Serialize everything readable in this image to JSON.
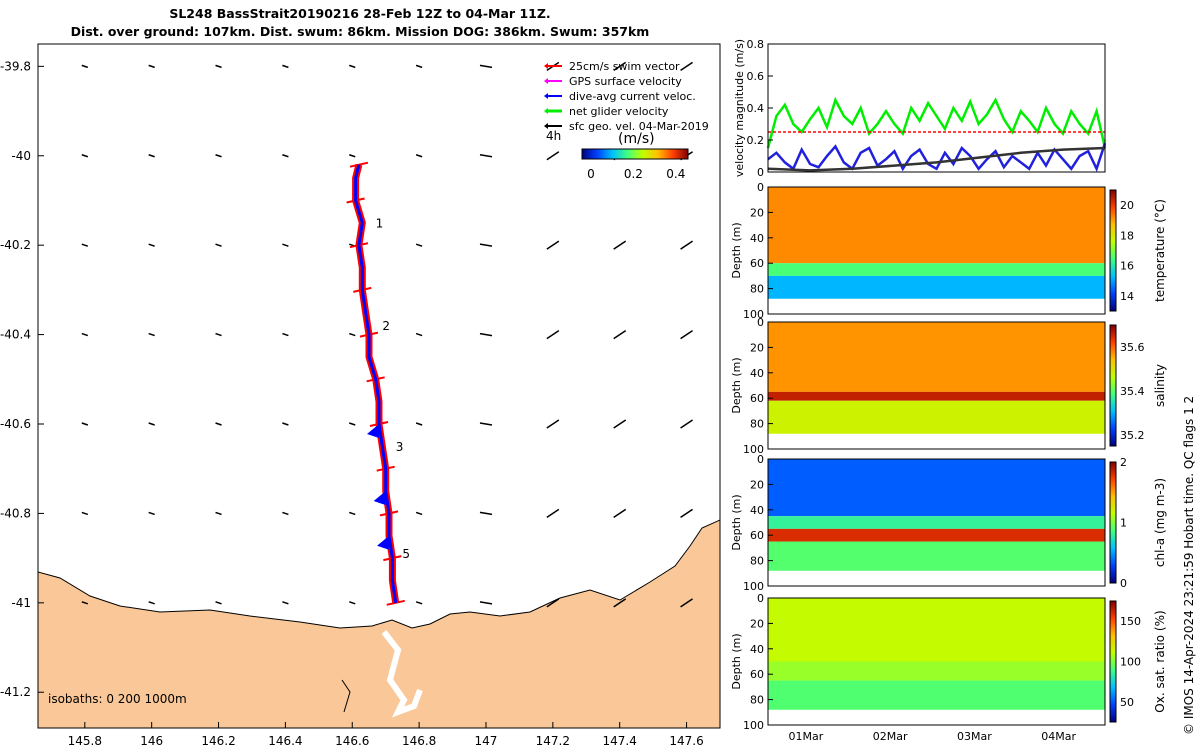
{
  "title_line1": "SL248 BassStrait20190216 28-Feb 12Z to 04-Mar 11Z.",
  "title_line2": "Dist. over ground: 107km. Dist. swum: 86km. Mission DOG: 386km. Swum: 357km",
  "credit": "© IMOS 14-Apr-2024 23:21:59 Hobart time. QC flags 1  2",
  "colors": {
    "land": "#fac898",
    "swim_vector": "#ff0000",
    "gps_velocity": "#ff00ff",
    "current_velocity": "#0000ff",
    "net_velocity": "#00ee00",
    "geo_velocity": "#000000"
  },
  "chart_data": [
    {
      "type": "map",
      "xlim": [
        145.66,
        147.7
      ],
      "ylim": [
        -41.28,
        -39.75
      ],
      "x_ticks": [
        145.8,
        146,
        146.2,
        146.4,
        146.6,
        146.8,
        147,
        147.2,
        147.4,
        147.6
      ],
      "x_tick_labels": [
        "145.8",
        "146",
        "146.2",
        "146.4",
        "146.6",
        "146.8",
        "147",
        "147.2",
        "147.4",
        "147.6"
      ],
      "y_ticks": [
        -39.8,
        -40,
        -40.2,
        -40.4,
        -40.6,
        -40.8,
        -41,
        -41.2
      ],
      "y_tick_labels": [
        "-39.8",
        "-40",
        "-40.2",
        "-40.4",
        "-40.6",
        "-40.8",
        "-41",
        "-41.2"
      ],
      "legend": {
        "placement": "top-right",
        "entries": [
          "25cm/s swim vector",
          "GPS surface velocity",
          "dive-avg current veloc.",
          "net glider velocity",
          "sfc geo. vel. 04-Mar-2019"
        ]
      },
      "colorbar": {
        "label": "(m/s)",
        "time_label": "4h",
        "ticks": [
          0,
          0.2,
          0.4
        ],
        "tick_labels": [
          "0",
          "0.2",
          "0.4"
        ],
        "range": [
          0,
          0.5
        ]
      },
      "isobaths_label": "isobaths: 0   200  1000m",
      "track": [
        [
          146.62,
          -40.02
        ],
        [
          146.61,
          -40.05
        ],
        [
          146.61,
          -40.1
        ],
        [
          146.63,
          -40.15
        ],
        [
          146.62,
          -40.2
        ],
        [
          146.63,
          -40.25
        ],
        [
          146.63,
          -40.3
        ],
        [
          146.64,
          -40.35
        ],
        [
          146.65,
          -40.4
        ],
        [
          146.65,
          -40.45
        ],
        [
          146.67,
          -40.5
        ],
        [
          146.68,
          -40.55
        ],
        [
          146.68,
          -40.6
        ],
        [
          146.69,
          -40.65
        ],
        [
          146.7,
          -40.7
        ],
        [
          146.7,
          -40.75
        ],
        [
          146.71,
          -40.8
        ],
        [
          146.71,
          -40.85
        ],
        [
          146.72,
          -40.9
        ],
        [
          146.72,
          -40.95
        ],
        [
          146.73,
          -41.0
        ]
      ],
      "waypoints": [
        {
          "label": "1",
          "lon": 146.67,
          "lat": -40.16
        },
        {
          "label": "2",
          "lon": 146.69,
          "lat": -40.39
        },
        {
          "label": "3",
          "lon": 146.73,
          "lat": -40.66
        },
        {
          "label": "5",
          "lon": 146.75,
          "lat": -40.9
        }
      ],
      "geo_velocity_lons": [
        145.8,
        146.0,
        146.2,
        146.4,
        146.6,
        146.8,
        147.0,
        147.2,
        147.4,
        147.6
      ],
      "geo_velocity_lats": [
        -39.8,
        -40.0,
        -40.2,
        -40.4,
        -40.6,
        -40.8,
        -41.0
      ]
    },
    {
      "type": "line",
      "ylabel": "velocity magnitude (m/s)",
      "ylim": [
        0,
        0.8
      ],
      "y_ticks": [
        0,
        0.2,
        0.4,
        0.6,
        0.8
      ],
      "y_tick_labels": [
        "0",
        "0.2",
        "0.4",
        "0.6",
        "0.8"
      ],
      "x_range_days": [
        0,
        4
      ],
      "series": [
        {
          "color": "#00ee00",
          "t": [
            0,
            0.1,
            0.2,
            0.3,
            0.4,
            0.5,
            0.6,
            0.7,
            0.8,
            0.9,
            1.0,
            1.1,
            1.2,
            1.3,
            1.4,
            1.5,
            1.6,
            1.7,
            1.8,
            1.9,
            2.0,
            2.1,
            2.2,
            2.3,
            2.4,
            2.5,
            2.6,
            2.7,
            2.8,
            2.9,
            3.0,
            3.1,
            3.2,
            3.3,
            3.4,
            3.5,
            3.6,
            3.7,
            3.8,
            3.9,
            4.0
          ],
          "values": [
            0.15,
            0.35,
            0.42,
            0.3,
            0.25,
            0.33,
            0.4,
            0.28,
            0.45,
            0.35,
            0.3,
            0.4,
            0.24,
            0.3,
            0.38,
            0.3,
            0.24,
            0.4,
            0.32,
            0.43,
            0.35,
            0.27,
            0.4,
            0.32,
            0.44,
            0.3,
            0.36,
            0.45,
            0.33,
            0.25,
            0.38,
            0.32,
            0.25,
            0.4,
            0.3,
            0.24,
            0.38,
            0.3,
            0.24,
            0.38,
            0.15
          ]
        },
        {
          "color": "#ff0000",
          "t": [
            0,
            4
          ],
          "values": [
            0.25,
            0.25
          ]
        },
        {
          "color": "#2020dd",
          "t": [
            0,
            0.1,
            0.2,
            0.3,
            0.4,
            0.5,
            0.6,
            0.7,
            0.8,
            0.9,
            1.0,
            1.1,
            1.2,
            1.3,
            1.4,
            1.5,
            1.6,
            1.7,
            1.8,
            1.9,
            2.0,
            2.1,
            2.2,
            2.3,
            2.4,
            2.5,
            2.6,
            2.7,
            2.8,
            2.9,
            3.0,
            3.1,
            3.2,
            3.3,
            3.4,
            3.5,
            3.6,
            3.7,
            3.8,
            3.9,
            4.0
          ],
          "values": [
            0.08,
            0.12,
            0.06,
            0.02,
            0.14,
            0.05,
            0.03,
            0.1,
            0.16,
            0.06,
            0.02,
            0.12,
            0.15,
            0.04,
            0.08,
            0.13,
            0.02,
            0.1,
            0.14,
            0.05,
            0.02,
            0.12,
            0.05,
            0.15,
            0.1,
            0.02,
            0.08,
            0.13,
            0.03,
            0.1,
            0.06,
            0.02,
            0.12,
            0.04,
            0.14,
            0.08,
            0.02,
            0.1,
            0.13,
            0.02,
            0.18
          ]
        },
        {
          "color": "#333333",
          "t": [
            0,
            0.5,
            1.0,
            1.5,
            2.0,
            2.5,
            3.0,
            3.5,
            4.0
          ],
          "values": [
            0.02,
            0.01,
            0.02,
            0.04,
            0.06,
            0.09,
            0.12,
            0.14,
            0.15
          ]
        }
      ]
    },
    {
      "type": "heatmap",
      "variable": "temperature",
      "ylabel": "Depth (m)",
      "cbar_label": "temperature (°C)",
      "ylim": [
        100,
        0
      ],
      "y_ticks": [
        0,
        20,
        40,
        60,
        80,
        100
      ],
      "clim": [
        13,
        21
      ],
      "cbar_ticks": [
        14,
        16,
        18,
        20
      ],
      "colormap": [
        "#00007f",
        "#0040ff",
        "#00c0ff",
        "#40ff80",
        "#c0ff00",
        "#ffc000",
        "#ff4000",
        "#800000"
      ],
      "layers": [
        {
          "from_depth": 0,
          "to_depth": 60,
          "value": 19.2
        },
        {
          "from_depth": 60,
          "to_depth": 70,
          "value": 16.5
        },
        {
          "from_depth": 70,
          "to_depth": 90,
          "value": 15.2
        }
      ]
    },
    {
      "type": "heatmap",
      "variable": "salinity",
      "ylabel": "Depth (m)",
      "cbar_label": "salinity",
      "ylim": [
        100,
        0
      ],
      "y_ticks": [
        0,
        20,
        40,
        60,
        80,
        100
      ],
      "clim": [
        35.15,
        35.7
      ],
      "cbar_ticks": [
        35.2,
        35.4,
        35.6
      ],
      "colormap": [
        "#00007f",
        "#0040ff",
        "#00c0ff",
        "#40ff80",
        "#c0ff00",
        "#ffc000",
        "#ff4000",
        "#800000"
      ],
      "layers": [
        {
          "from_depth": 0,
          "to_depth": 55,
          "value": 35.57
        },
        {
          "from_depth": 55,
          "to_depth": 62,
          "value": 35.66
        },
        {
          "from_depth": 62,
          "to_depth": 90,
          "value": 35.48
        }
      ]
    },
    {
      "type": "heatmap",
      "variable": "chl-a",
      "ylabel": "Depth (m)",
      "cbar_label": "chl-a (mg m-3)",
      "ylim": [
        100,
        0
      ],
      "y_ticks": [
        0,
        20,
        40,
        60,
        80,
        100
      ],
      "clim": [
        0,
        2
      ],
      "cbar_ticks": [
        0,
        1,
        2
      ],
      "colormap": [
        "#00007f",
        "#0040ff",
        "#00c0ff",
        "#40ff80",
        "#c0ff00",
        "#ffc000",
        "#ff4000",
        "#800000"
      ],
      "layers": [
        {
          "from_depth": 0,
          "to_depth": 45,
          "value": 0.35
        },
        {
          "from_depth": 45,
          "to_depth": 55,
          "value": 0.8
        },
        {
          "from_depth": 55,
          "to_depth": 65,
          "value": 1.8
        },
        {
          "from_depth": 65,
          "to_depth": 90,
          "value": 0.9
        }
      ]
    },
    {
      "type": "heatmap",
      "variable": "oxygen",
      "ylabel": "Depth (m)",
      "cbar_label": "Ox. sat. ratio (%)",
      "ylim": [
        100,
        0
      ],
      "y_ticks": [
        0,
        20,
        40,
        60,
        80,
        100
      ],
      "clim": [
        25,
        175
      ],
      "cbar_ticks": [
        50,
        100,
        150
      ],
      "colormap": [
        "#00007f",
        "#0040ff",
        "#00c0ff",
        "#40ff80",
        "#c0ff00",
        "#ffc000",
        "#ff4000",
        "#800000"
      ],
      "layers": [
        {
          "from_depth": 0,
          "to_depth": 50,
          "value": 112
        },
        {
          "from_depth": 50,
          "to_depth": 65,
          "value": 104
        },
        {
          "from_depth": 65,
          "to_depth": 90,
          "value": 92
        }
      ]
    }
  ],
  "time_axis": {
    "ticks": [
      0.45,
      1.45,
      2.45,
      3.45
    ],
    "labels": [
      "01Mar",
      "02Mar",
      "03Mar",
      "04Mar"
    ],
    "range_days": [
      0,
      4
    ]
  }
}
